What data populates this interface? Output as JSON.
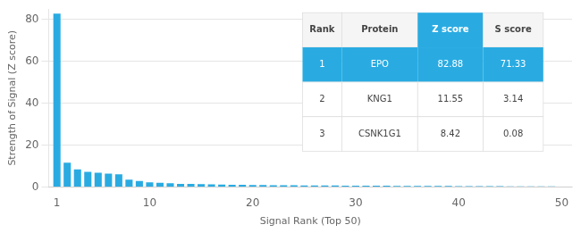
{
  "chart_data": {
    "type": "bar",
    "xlabel": "Signal Rank (Top 50)",
    "ylabel": "Strength of Signal (Z score)",
    "x": [
      1,
      2,
      3,
      4,
      5,
      6,
      7,
      8,
      9,
      10,
      11,
      12,
      13,
      14,
      15,
      16,
      17,
      18,
      19,
      20,
      21,
      22,
      23,
      24,
      25,
      26,
      27,
      28,
      29,
      30,
      31,
      32,
      33,
      34,
      35,
      36,
      37,
      38,
      39,
      40,
      41,
      42,
      43,
      44,
      45,
      46,
      47,
      48,
      49,
      50
    ],
    "values": [
      82.88,
      11.55,
      8.42,
      7.2,
      6.8,
      6.4,
      6.0,
      3.5,
      2.8,
      2.2,
      2.0,
      1.8,
      1.5,
      1.4,
      1.3,
      1.2,
      1.1,
      1.05,
      1.0,
      0.95,
      0.9,
      0.85,
      0.8,
      0.78,
      0.75,
      0.72,
      0.7,
      0.68,
      0.65,
      0.62,
      0.6,
      0.58,
      0.56,
      0.54,
      0.52,
      0.5,
      0.48,
      0.46,
      0.44,
      0.42,
      0.4,
      0.38,
      0.36,
      0.34,
      0.32,
      0.3,
      0.28,
      0.26,
      0.24,
      0.22
    ],
    "color": "#29ABE2",
    "xlim": [
      0.2,
      51
    ],
    "xticks": [
      1,
      10,
      20,
      30,
      40,
      50
    ],
    "ylim": [
      0,
      85
    ],
    "yticks": [
      0,
      20,
      40,
      60,
      80
    ],
    "grid": true,
    "table": {
      "headers": [
        "Rank",
        "Protein",
        "Z score",
        "S score"
      ],
      "rows": [
        [
          "1",
          "EPO",
          "82.88",
          "71.33"
        ],
        [
          "2",
          "KNG1",
          "11.55",
          "3.14"
        ],
        [
          "3",
          "CSNK1G1",
          "8.42",
          "0.08"
        ]
      ]
    }
  }
}
